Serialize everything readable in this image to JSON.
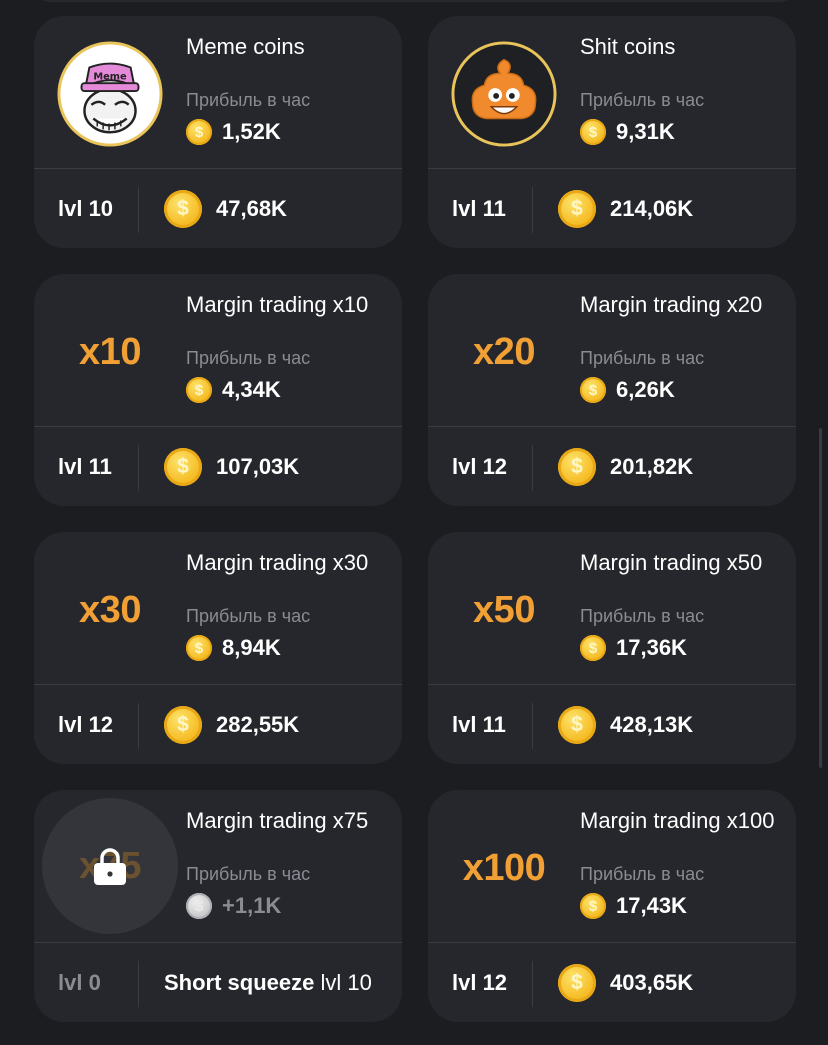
{
  "profit_label": "Прибыль в час",
  "cards": [
    {
      "title": "Meme coins",
      "icon": "troll-face-meme-icon",
      "icon_label": "Meme",
      "profit": "1,52K",
      "level": "lvl 10",
      "price": "47,68K"
    },
    {
      "title": "Shit coins",
      "icon": "poop-emoji-icon",
      "profit": "9,31K",
      "level": "lvl 11",
      "price": "214,06K"
    },
    {
      "title": "Margin trading x10",
      "multiplier": "x10",
      "profit": "4,34K",
      "level": "lvl 11",
      "price": "107,03K"
    },
    {
      "title": "Margin trading x20",
      "multiplier": "x20",
      "profit": "6,26K",
      "level": "lvl 12",
      "price": "201,82K"
    },
    {
      "title": "Margin trading x30",
      "multiplier": "x30",
      "profit": "8,94K",
      "level": "lvl 12",
      "price": "282,55K"
    },
    {
      "title": "Margin trading x50",
      "multiplier": "x50",
      "profit": "17,36K",
      "level": "lvl 11",
      "price": "428,13K"
    },
    {
      "title": "Margin trading x75",
      "multiplier": "x75",
      "locked": true,
      "profit": "+1,1K",
      "level": "lvl 0",
      "requirement_name": "Short squeeze",
      "requirement_level": "lvl 10"
    },
    {
      "title": "Margin trading x100",
      "multiplier": "x100",
      "profit": "17,43K",
      "level": "lvl 12",
      "price": "403,65K"
    }
  ],
  "colors": {
    "background": "#1c1d21",
    "card": "#26272c",
    "accent_orange": "#f0a035",
    "coin_gold": "#f5b81e",
    "muted_text": "#8a8b93"
  }
}
